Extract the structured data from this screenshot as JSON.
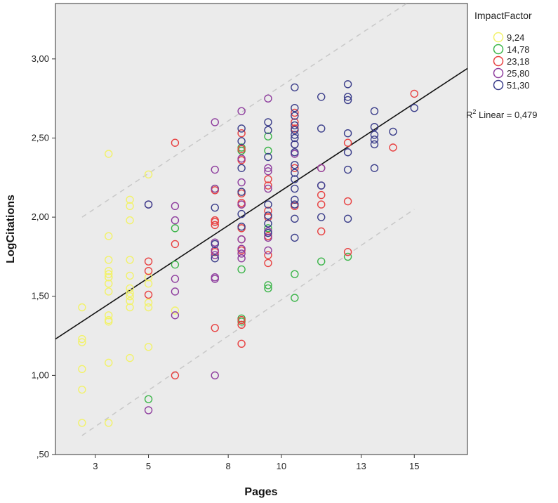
{
  "chart_data": {
    "type": "scatter",
    "xlabel": "Pages",
    "ylabel": "LogCitations",
    "xlim": [
      1.5,
      17.0
    ],
    "ylim": [
      0.5,
      3.35
    ],
    "x_ticks": [
      {
        "v": 3,
        "label": "3"
      },
      {
        "v": 5,
        "label": "5"
      },
      {
        "v": 8,
        "label": "8"
      },
      {
        "v": 10,
        "label": "10"
      },
      {
        "v": 13,
        "label": "13"
      },
      {
        "v": 15,
        "label": "15"
      }
    ],
    "y_ticks": [
      {
        "v": 0.5,
        "label": ",50"
      },
      {
        "v": 1.0,
        "label": "1,00"
      },
      {
        "v": 1.5,
        "label": "1,50"
      },
      {
        "v": 2.0,
        "label": "2,00"
      },
      {
        "v": 2.5,
        "label": "2,50"
      },
      {
        "v": 3.0,
        "label": "3,00"
      }
    ],
    "grid": false,
    "background": "#ebebeb",
    "legend_title": "ImpactFactor",
    "legend_position": "top-right",
    "fit_line": {
      "label": "Linear",
      "r2_label": "R",
      "r2_sup": "2",
      "r2_text": " Linear = 0,479",
      "x": [
        1.5,
        17.0
      ],
      "y": [
        1.23,
        2.94
      ],
      "color": "#111111"
    },
    "confidence_bounds": {
      "color": "#c8c8c8",
      "upper": {
        "x": [
          2.5,
          14.8
        ],
        "y": [
          2.0,
          3.36
        ]
      },
      "lower": {
        "x": [
          2.5,
          15.0
        ],
        "y": [
          0.62,
          2.05
        ]
      }
    },
    "series": [
      {
        "name": "9,24",
        "color": "#f2f26a",
        "x": [
          2.5,
          2.5,
          2.5,
          2.5,
          2.5,
          2.5,
          3.5,
          3.5,
          3.5,
          3.5,
          3.5,
          3.5,
          3.5,
          3.5,
          3.5,
          3.5,
          3.5,
          3.5,
          3.5,
          3.5,
          4.3,
          4.3,
          4.3,
          4.3,
          4.3,
          4.3,
          4.3,
          4.3,
          4.3,
          4.3,
          4.3,
          5.0,
          5.0,
          5.0,
          5.0,
          5.0,
          5.0,
          6.0
        ],
        "y": [
          1.43,
          1.23,
          1.21,
          1.04,
          0.91,
          0.7,
          2.4,
          1.88,
          1.73,
          1.66,
          1.64,
          1.62,
          1.58,
          1.53,
          1.38,
          1.35,
          1.34,
          1.08,
          0.7,
          1.62,
          2.11,
          2.07,
          1.98,
          1.73,
          1.63,
          1.55,
          1.52,
          1.47,
          1.43,
          1.11,
          1.5,
          2.27,
          1.58,
          1.46,
          1.43,
          1.18,
          1.62,
          1.41
        ]
      },
      {
        "name": "14,78",
        "color": "#3cb54a",
        "x": [
          5.0,
          6.0,
          6.0,
          7.5,
          8.5,
          8.5,
          8.5,
          8.5,
          8.5,
          9.5,
          9.5,
          9.5,
          9.5,
          9.5,
          10.5,
          10.5,
          11.5,
          12.5
        ],
        "y": [
          0.85,
          1.93,
          1.7,
          2.18,
          2.44,
          2.42,
          1.67,
          1.36,
          1.34,
          2.51,
          2.42,
          1.93,
          1.57,
          1.55,
          1.64,
          1.49,
          1.72,
          1.75
        ]
      },
      {
        "name": "23,18",
        "color": "#e84040",
        "x": [
          5.0,
          5.0,
          5.0,
          6.0,
          6.0,
          6.0,
          7.5,
          7.5,
          7.5,
          7.5,
          7.5,
          7.5,
          8.5,
          8.5,
          8.5,
          8.5,
          8.5,
          8.5,
          8.5,
          8.5,
          8.5,
          8.5,
          8.5,
          8.5,
          9.5,
          9.5,
          9.5,
          9.5,
          9.5,
          9.5,
          9.5,
          10.5,
          10.5,
          10.5,
          10.5,
          10.5,
          11.5,
          11.5,
          11.5,
          11.5,
          12.5,
          12.5,
          12.5,
          14.2,
          15.0
        ],
        "y": [
          1.72,
          1.66,
          1.51,
          2.47,
          1.83,
          1.0,
          2.17,
          1.98,
          1.97,
          1.95,
          1.78,
          1.3,
          2.53,
          2.43,
          2.36,
          2.15,
          2.09,
          2.08,
          1.93,
          1.86,
          1.79,
          1.35,
          1.32,
          1.2,
          2.24,
          2.2,
          2.04,
          1.88,
          1.76,
          1.71,
          2.0,
          2.66,
          2.6,
          2.56,
          2.31,
          2.07,
          2.14,
          2.08,
          1.91,
          2.31,
          2.1,
          2.47,
          1.78,
          2.44,
          2.78
        ]
      },
      {
        "name": "25,80",
        "color": "#8e3d9e",
        "x": [
          5.0,
          5.0,
          6.0,
          6.0,
          6.0,
          6.0,
          6.0,
          7.5,
          7.5,
          7.5,
          7.5,
          7.5,
          7.5,
          7.5,
          7.5,
          7.5,
          8.5,
          8.5,
          8.5,
          8.5,
          8.5,
          8.5,
          8.5,
          8.5,
          9.5,
          9.5,
          9.5,
          9.5,
          9.5,
          9.5,
          9.5,
          10.5,
          10.5,
          10.5,
          11.5,
          11.5
        ],
        "y": [
          2.08,
          0.78,
          2.07,
          1.98,
          1.61,
          1.53,
          1.38,
          2.6,
          2.3,
          2.18,
          1.84,
          1.79,
          1.62,
          1.61,
          1.0,
          1.76,
          2.67,
          2.37,
          2.22,
          2.08,
          1.86,
          1.8,
          1.77,
          1.74,
          2.75,
          2.31,
          2.29,
          2.18,
          1.91,
          1.87,
          1.79,
          2.46,
          2.4,
          2.08,
          2.31,
          2.2
        ]
      },
      {
        "name": "51,30",
        "color": "#3a3d8a",
        "x": [
          5.0,
          7.5,
          7.5,
          7.5,
          8.5,
          8.5,
          8.5,
          8.5,
          8.5,
          8.5,
          9.5,
          9.5,
          9.5,
          9.5,
          9.5,
          9.5,
          9.5,
          10.5,
          10.5,
          10.5,
          10.5,
          10.5,
          10.5,
          10.5,
          10.5,
          10.5,
          10.5,
          10.5,
          10.5,
          10.5,
          10.5,
          10.5,
          10.5,
          10.5,
          11.5,
          11.5,
          11.5,
          11.5,
          12.5,
          12.5,
          12.5,
          12.5,
          12.5,
          12.5,
          12.5,
          13.5,
          13.5,
          13.5,
          13.5,
          13.5,
          13.5,
          14.2,
          15.0
        ],
        "y": [
          2.08,
          2.06,
          1.83,
          1.74,
          2.56,
          2.48,
          2.31,
          2.16,
          2.02,
          1.94,
          2.6,
          2.55,
          2.38,
          2.08,
          2.01,
          1.96,
          1.9,
          2.82,
          2.69,
          2.64,
          2.55,
          2.5,
          2.46,
          2.41,
          2.33,
          2.28,
          2.24,
          2.18,
          2.11,
          2.08,
          1.99,
          1.87,
          2.52,
          2.58,
          2.76,
          2.56,
          2.2,
          2.0,
          2.84,
          2.76,
          2.74,
          2.53,
          2.41,
          2.3,
          1.99,
          2.67,
          2.57,
          2.52,
          2.49,
          2.46,
          2.31,
          2.54,
          2.69
        ]
      }
    ]
  }
}
